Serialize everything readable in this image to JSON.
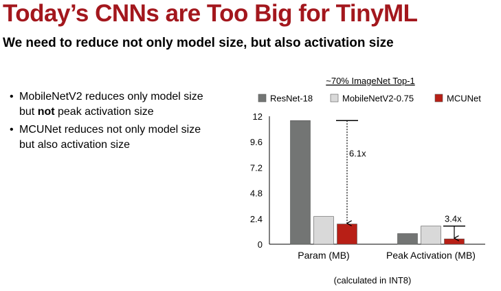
{
  "slide": {
    "title": "Today’s CNNs are Too Big for TinyML",
    "subtitle": "We need to reduce not only model size, but also activation size",
    "bullets": [
      {
        "pre": "MobileNetV2 reduces only model size but ",
        "bold": "not",
        "post": " peak activation size"
      },
      {
        "pre": "MCUNet reduces not only model size but also activation size",
        "bold": "",
        "post": ""
      }
    ],
    "note": "(calculated in INT8)"
  },
  "chart_data": {
    "type": "bar",
    "title": "~70% ImageNet Top-1",
    "categories": [
      "Param (MB)",
      "Peak Activation (MB)"
    ],
    "series": [
      {
        "name": "ResNet-18",
        "color": "#737574",
        "values": [
          11.6,
          1.0
        ]
      },
      {
        "name": "MobileNetV2-0.75",
        "color": "#d9d9d9",
        "values": [
          2.6,
          1.7
        ]
      },
      {
        "name": "MCUNet",
        "color": "#b81f16",
        "values": [
          1.9,
          0.5
        ]
      }
    ],
    "ylim": [
      0,
      12
    ],
    "yticks": [
      "0",
      "2.4",
      "4.8",
      "7.2",
      "9.6",
      "12"
    ],
    "legend": "top",
    "annotations": [
      {
        "text": "6.1x",
        "category": 0,
        "from": 11.6,
        "to": 1.9,
        "style": "dotted"
      },
      {
        "text": "3.4x",
        "category": 1,
        "from": 1.7,
        "to": 0.5,
        "style": "solid"
      }
    ]
  }
}
